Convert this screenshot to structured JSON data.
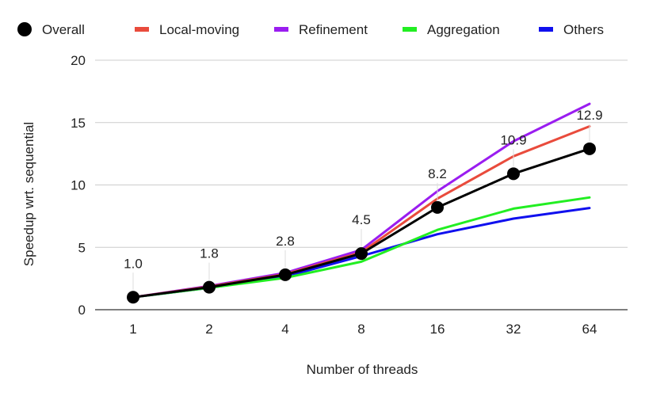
{
  "chart_data": {
    "type": "line",
    "title": "",
    "xlabel": "Number of threads",
    "ylabel": "Speedup wrt. sequential",
    "categories": [
      "1",
      "2",
      "4",
      "8",
      "16",
      "32",
      "64"
    ],
    "yticks": [
      "0",
      "5",
      "10",
      "15",
      "20"
    ],
    "ylim": [
      0,
      20
    ],
    "grid": true,
    "legend_position": "top",
    "series": [
      {
        "name": "Overall",
        "color": "#000000",
        "marker": "circle",
        "values": [
          1.0,
          1.8,
          2.8,
          4.5,
          8.2,
          10.9,
          12.9
        ],
        "labels": [
          "1.0",
          "1.8",
          "2.8",
          "4.5",
          "8.2",
          "10.9",
          "12.9"
        ]
      },
      {
        "name": "Local-moving",
        "color": "#e94b3c",
        "values": [
          1.0,
          1.85,
          2.85,
          4.6,
          8.9,
          12.3,
          14.7
        ]
      },
      {
        "name": "Refinement",
        "color": "#9a1df0",
        "values": [
          1.0,
          1.9,
          2.95,
          4.8,
          9.5,
          13.5,
          16.5
        ]
      },
      {
        "name": "Aggregation",
        "color": "#22ee22",
        "values": [
          1.0,
          1.75,
          2.55,
          3.85,
          6.4,
          8.1,
          9.0
        ]
      },
      {
        "name": "Others",
        "color": "#1010ee",
        "values": [
          1.0,
          1.75,
          2.65,
          4.3,
          6.05,
          7.3,
          8.15
        ]
      }
    ]
  }
}
